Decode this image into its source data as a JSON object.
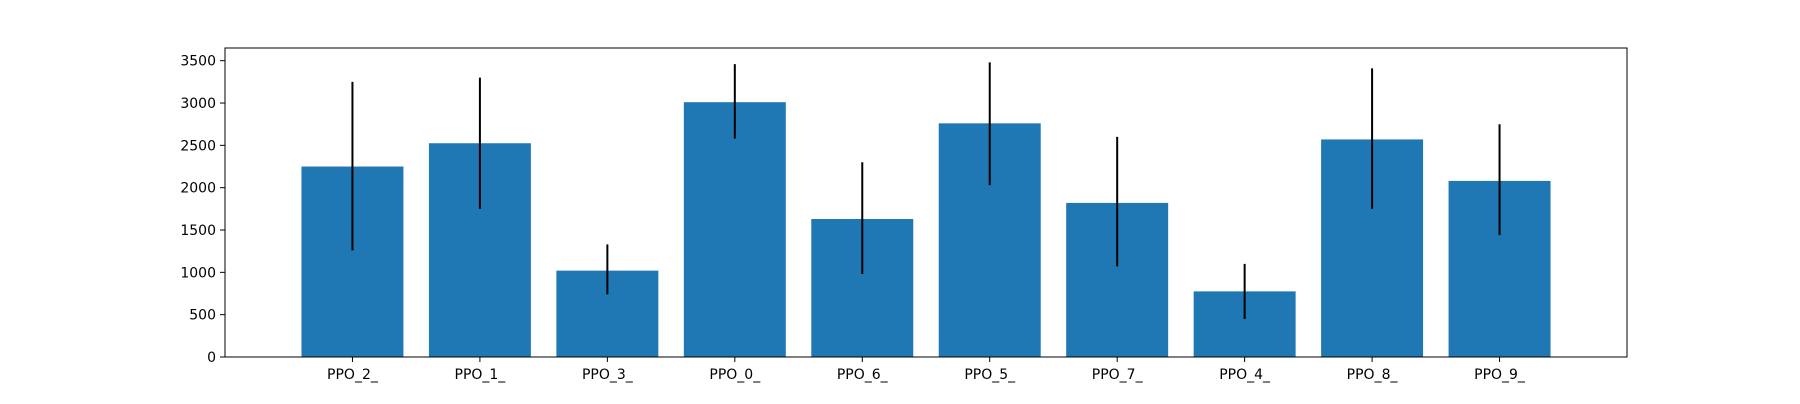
{
  "chart_data": {
    "type": "bar",
    "title": "",
    "xlabel": "",
    "ylabel": "",
    "categories": [
      "PPO_2_",
      "PPO_1_",
      "PPO_3_",
      "PPO_0_",
      "PPO_6_",
      "PPO_5_",
      "PPO_7_",
      "PPO_4_",
      "PPO_8_",
      "PPO_9_"
    ],
    "values": [
      2250,
      2525,
      1020,
      3010,
      1630,
      2760,
      1820,
      775,
      2570,
      2080
    ],
    "error_low": [
      1260,
      1750,
      740,
      2580,
      980,
      2030,
      1070,
      450,
      1750,
      1440
    ],
    "error_high": [
      3250,
      3300,
      1330,
      3460,
      2300,
      3480,
      2600,
      1100,
      3410,
      2750
    ],
    "ylim": [
      0,
      3650
    ],
    "yticks": [
      0,
      500,
      1000,
      1500,
      2000,
      2500,
      3000,
      3500
    ],
    "grid": false,
    "bar_color": "#1f77b4",
    "error_color": "#000000"
  }
}
